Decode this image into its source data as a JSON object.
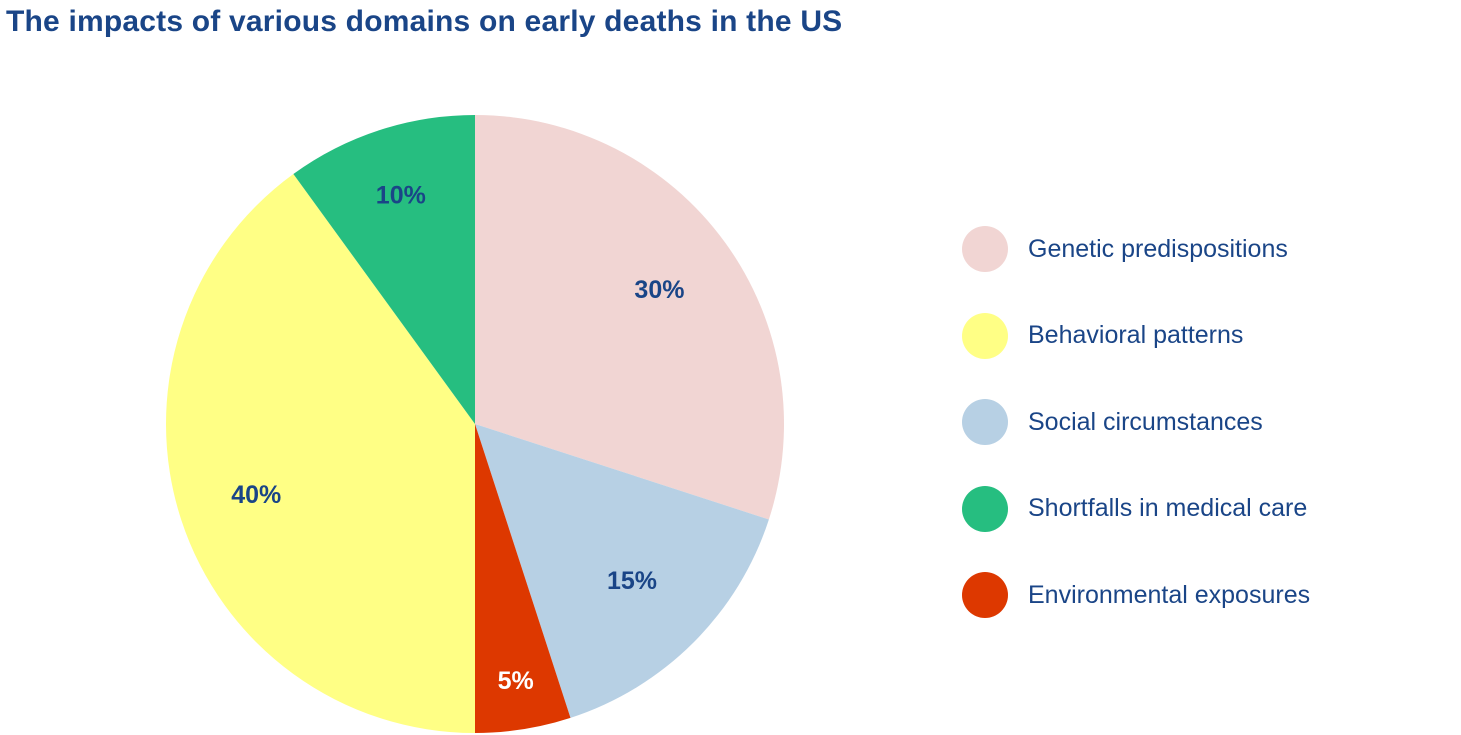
{
  "title": "The impacts of various domains on early deaths in the US",
  "colors": {
    "title_text": "#1a4587",
    "label_text": "#1a4587",
    "label_text_on_dark": "#ffffff"
  },
  "chart_data": {
    "type": "pie",
    "title": "The impacts of various domains on early deaths in the US",
    "unit": "%",
    "start_angle": "12 o'clock",
    "direction": "clockwise",
    "slices": [
      {
        "name": "Genetic predispositions",
        "value": 30,
        "label": "30%",
        "color": "#f1d5d3"
      },
      {
        "name": "Social circumstances",
        "value": 15,
        "label": "15%",
        "color": "#b7d0e4"
      },
      {
        "name": "Environmental exposures",
        "value": 5,
        "label": "5%",
        "color": "#dd3800"
      },
      {
        "name": "Behavioral patterns",
        "value": 40,
        "label": "40%",
        "color": "#ffff85"
      },
      {
        "name": "Shortfalls in medical care",
        "value": 10,
        "label": "10%",
        "color": "#26be80"
      }
    ],
    "legend": {
      "position": "right",
      "items": [
        {
          "label": "Genetic predispositions",
          "color": "#f1d5d3"
        },
        {
          "label": "Behavioral patterns",
          "color": "#ffff85"
        },
        {
          "label": "Social circumstances",
          "color": "#b7d0e4"
        },
        {
          "label": "Shortfalls in medical care",
          "color": "#26be80"
        },
        {
          "label": "Environmental exposures",
          "color": "#dd3800"
        }
      ]
    }
  }
}
